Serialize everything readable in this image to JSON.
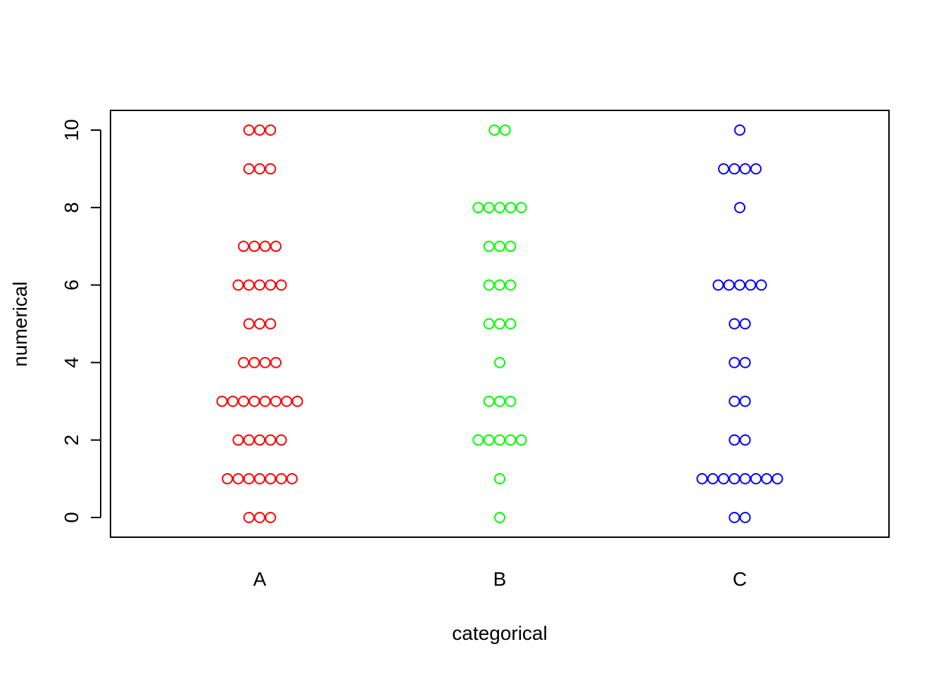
{
  "chart_data": {
    "type": "scatter",
    "title": "",
    "xlabel": "categorical",
    "ylabel": "numerical",
    "categories": [
      "A",
      "B",
      "C"
    ],
    "ylim": [
      0,
      10
    ],
    "yticks": [
      "0",
      "2",
      "4",
      "6",
      "8",
      "10"
    ],
    "grid": false,
    "colors": {
      "A": "#ff0000",
      "B": "#00ff00",
      "C": "#0000ff"
    },
    "series": [
      {
        "category": "A",
        "counts": [
          {
            "y": 0,
            "n": 3
          },
          {
            "y": 1,
            "n": 7
          },
          {
            "y": 2,
            "n": 5
          },
          {
            "y": 3,
            "n": 8
          },
          {
            "y": 4,
            "n": 4
          },
          {
            "y": 5,
            "n": 3
          },
          {
            "y": 6,
            "n": 5
          },
          {
            "y": 7,
            "n": 4
          },
          {
            "y": 9,
            "n": 3
          },
          {
            "y": 10,
            "n": 3
          }
        ]
      },
      {
        "category": "B",
        "counts": [
          {
            "y": 0,
            "n": 1
          },
          {
            "y": 1,
            "n": 1
          },
          {
            "y": 2,
            "n": 5
          },
          {
            "y": 3,
            "n": 3
          },
          {
            "y": 4,
            "n": 1
          },
          {
            "y": 5,
            "n": 3
          },
          {
            "y": 6,
            "n": 3
          },
          {
            "y": 7,
            "n": 3
          },
          {
            "y": 8,
            "n": 5
          },
          {
            "y": 10,
            "n": 2
          }
        ]
      },
      {
        "category": "C",
        "counts": [
          {
            "y": 0,
            "n": 2
          },
          {
            "y": 1,
            "n": 8
          },
          {
            "y": 2,
            "n": 2
          },
          {
            "y": 3,
            "n": 2
          },
          {
            "y": 4,
            "n": 2
          },
          {
            "y": 5,
            "n": 2
          },
          {
            "y": 6,
            "n": 5
          },
          {
            "y": 8,
            "n": 1
          },
          {
            "y": 9,
            "n": 4
          },
          {
            "y": 10,
            "n": 1
          }
        ]
      }
    ]
  }
}
